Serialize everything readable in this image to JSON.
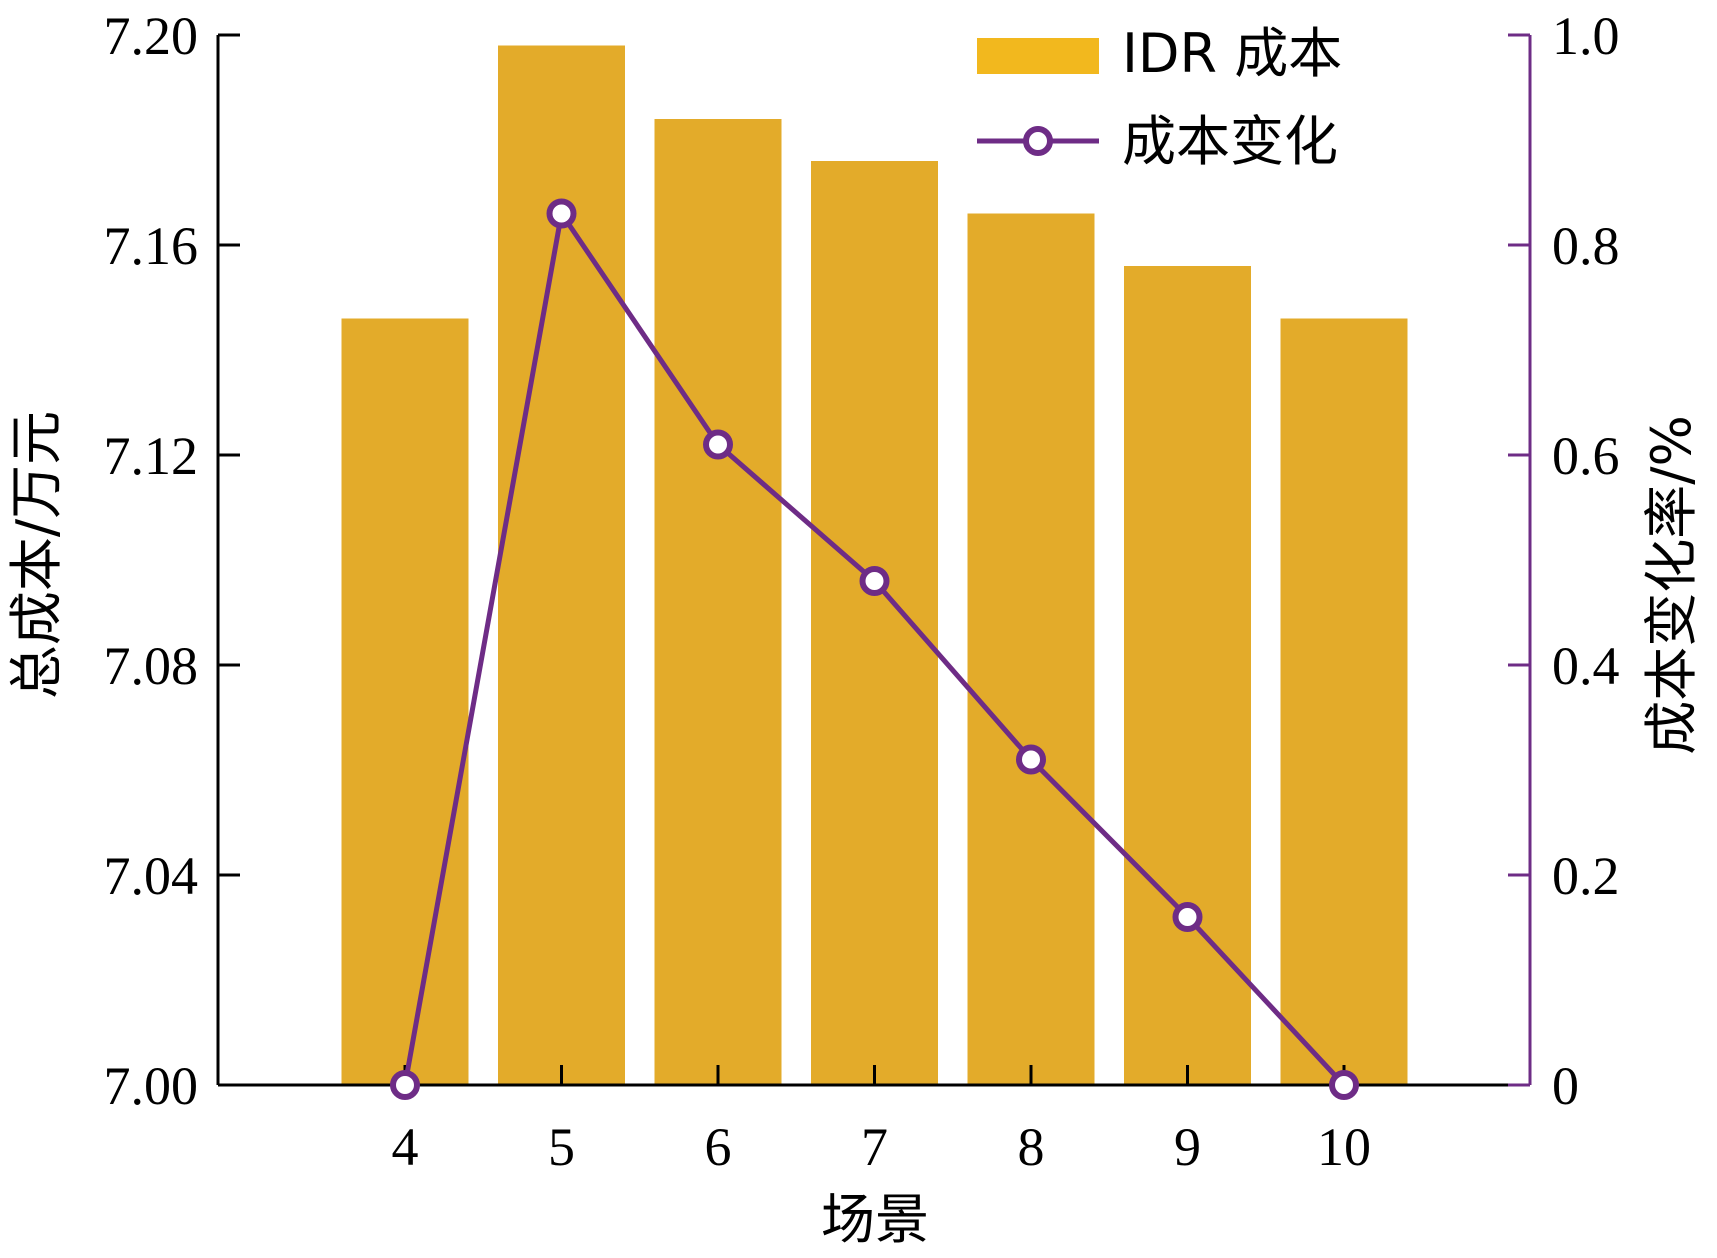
{
  "colors": {
    "bar": "#E3AB2A",
    "legend_bar": "#F2B81E",
    "line": "#6E2C86",
    "axis": "#000000",
    "right_axis": "#6E2C86"
  },
  "chart_data": {
    "type": "bar",
    "categories": [
      "4",
      "5",
      "6",
      "7",
      "8",
      "9",
      "10"
    ],
    "xlabel": "场景",
    "ylabel_left": "总成本/万元",
    "ylabel_right": "成本变化率/%",
    "ylim_left": [
      7.0,
      7.2
    ],
    "ylim_right": [
      0,
      1.0
    ],
    "yticks_left": [
      "7.00",
      "7.04",
      "7.08",
      "7.12",
      "7.16",
      "7.20"
    ],
    "yticks_right": [
      "0",
      "0.2",
      "0.4",
      "0.6",
      "0.8",
      "1.0"
    ],
    "legend_position": "top-right",
    "series": [
      {
        "name": "IDR 成本",
        "type": "bar",
        "axis": "left",
        "values": [
          7.146,
          7.198,
          7.184,
          7.176,
          7.166,
          7.156,
          7.146
        ]
      },
      {
        "name": "成本变化",
        "type": "line",
        "axis": "right",
        "marker": "circle",
        "values": [
          0.0,
          0.83,
          0.61,
          0.48,
          0.31,
          0.16,
          0.0
        ]
      }
    ]
  }
}
